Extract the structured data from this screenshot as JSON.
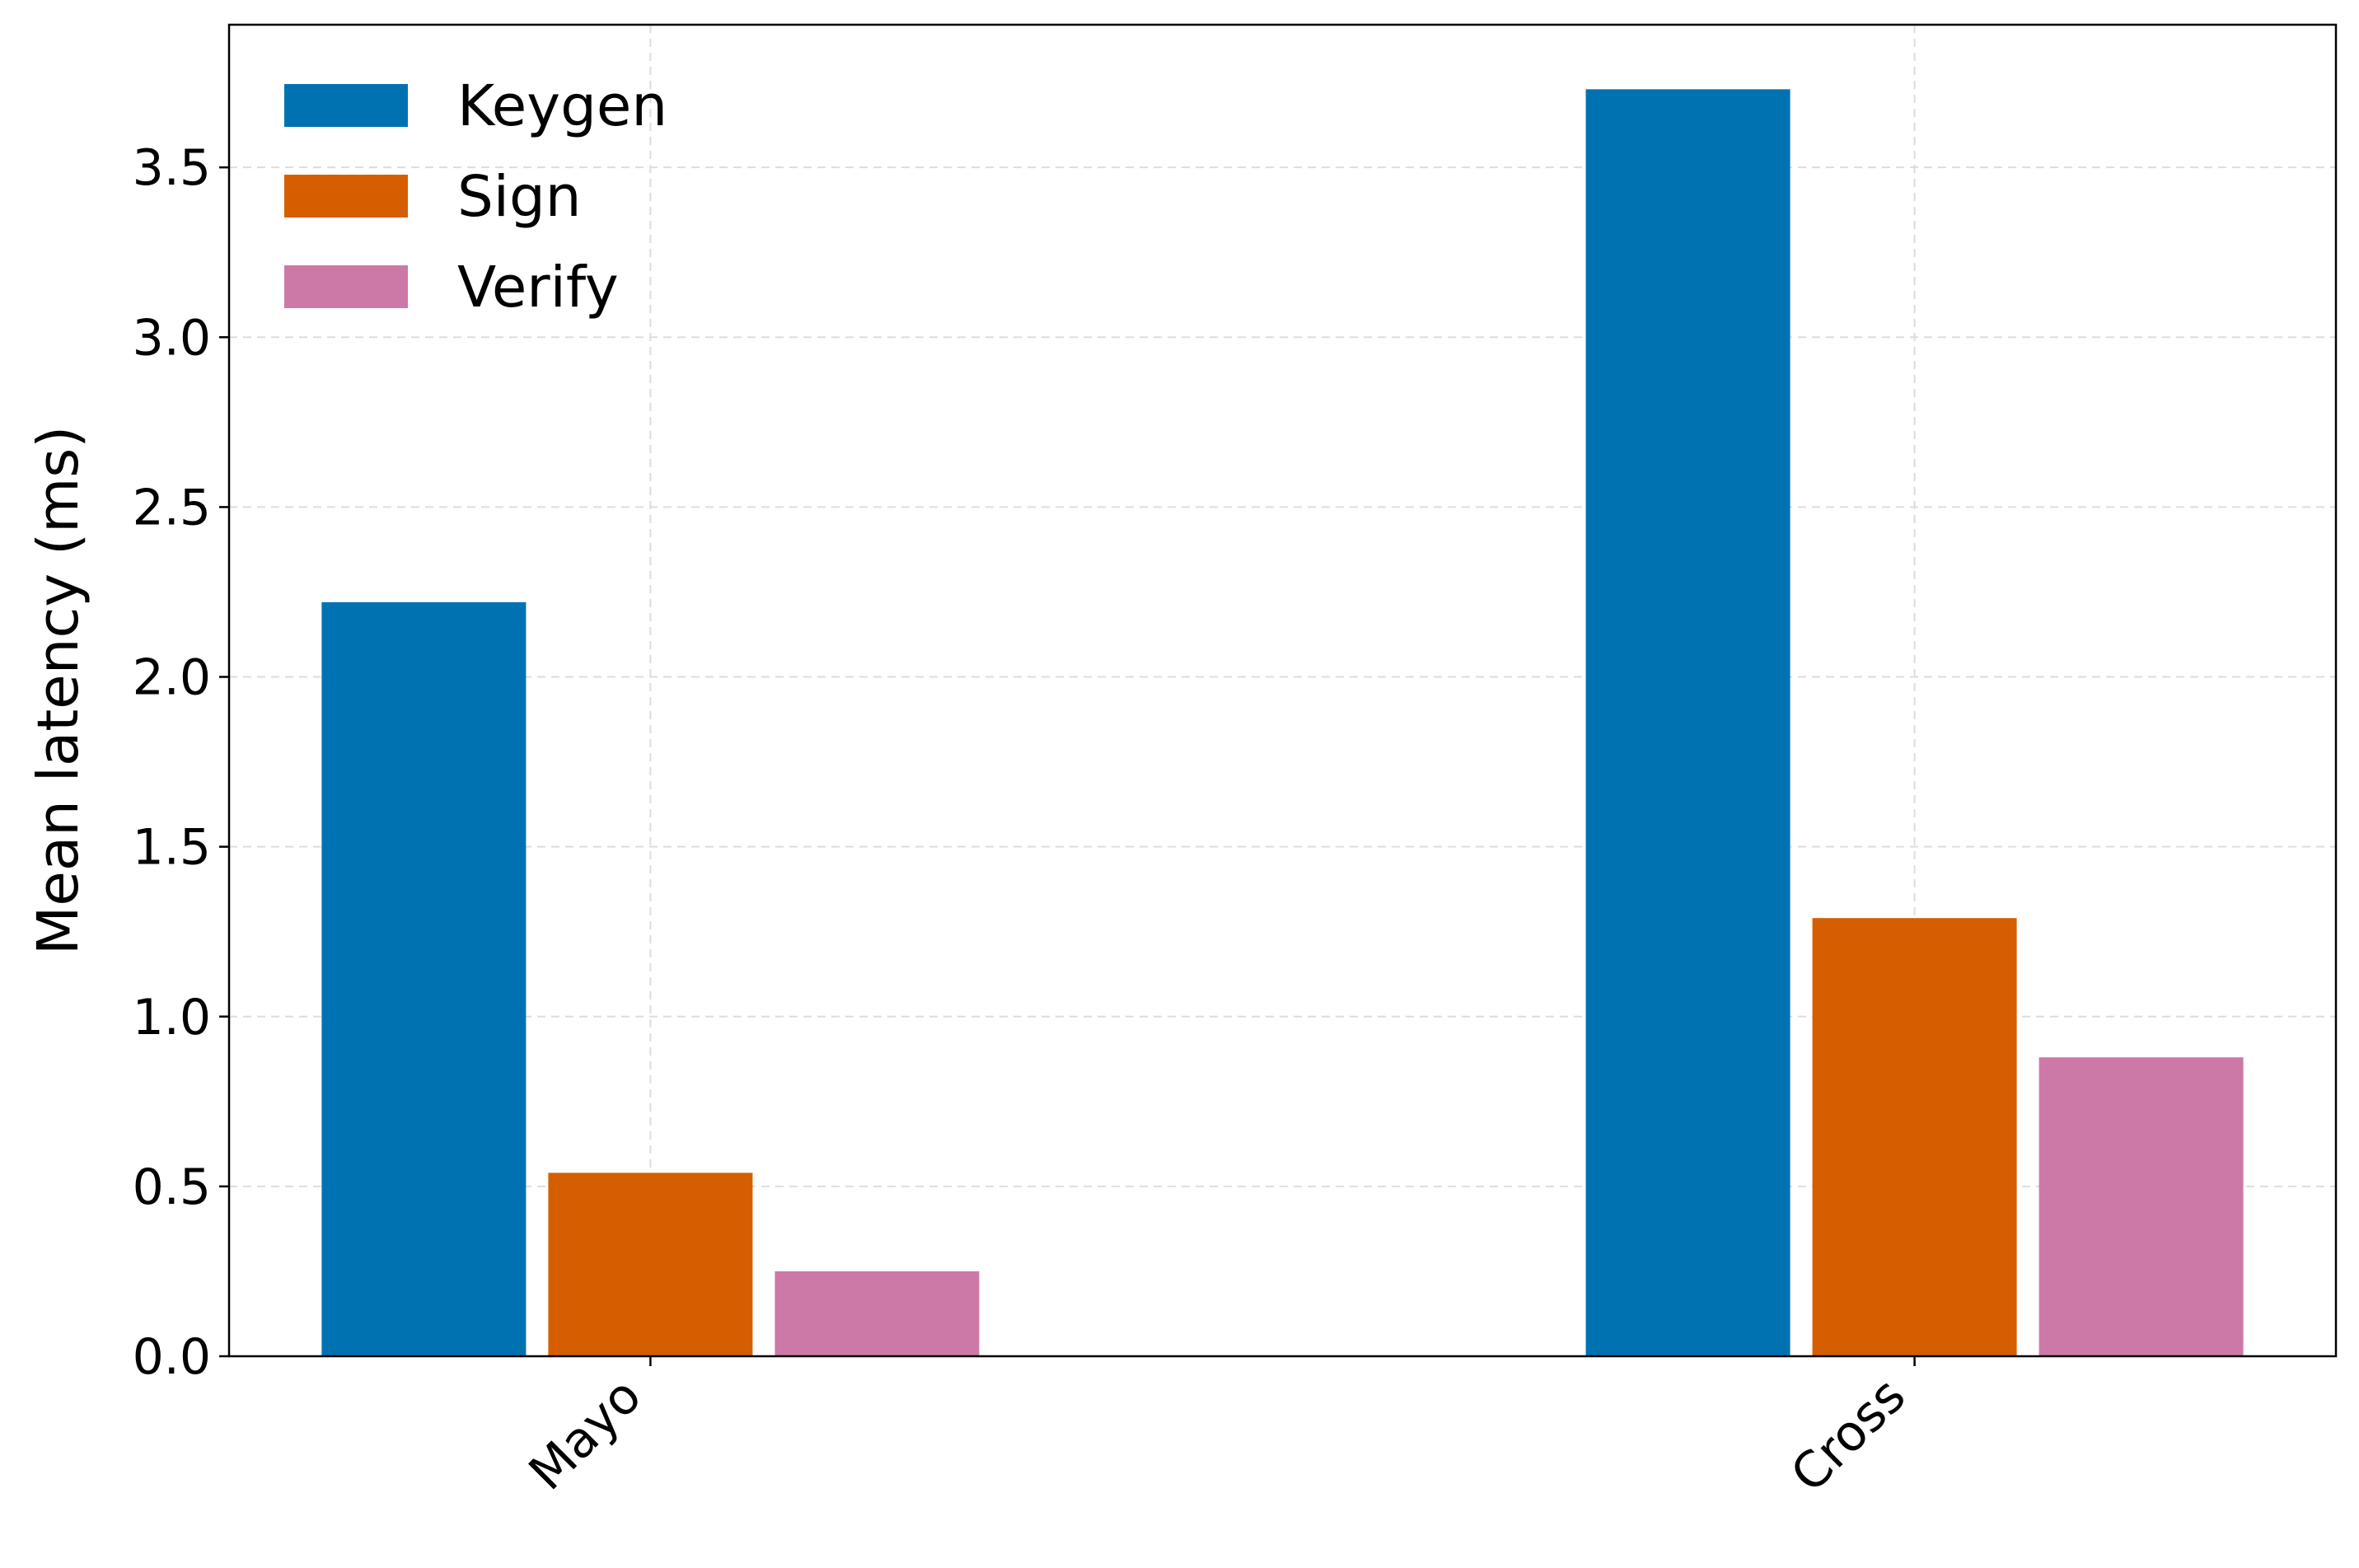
{
  "chart_data": {
    "type": "bar",
    "title": "",
    "xlabel": "",
    "ylabel": "Mean latency (ms)",
    "categories": [
      "Mayo",
      "Cross"
    ],
    "series": [
      {
        "name": "Keygen",
        "color": "#0072B2",
        "values": [
          2.22,
          3.73
        ]
      },
      {
        "name": "Sign",
        "color": "#D55E00",
        "values": [
          0.54,
          1.29
        ]
      },
      {
        "name": "Verify",
        "color": "#CC79A7",
        "values": [
          0.25,
          0.88
        ]
      }
    ],
    "ylim": [
      0,
      3.92
    ],
    "yticks": [
      0.0,
      0.5,
      1.0,
      1.5,
      2.0,
      2.5,
      3.0,
      3.5
    ],
    "ytick_labels": [
      "0.0",
      "0.5",
      "1.0",
      "1.5",
      "2.0",
      "2.5",
      "3.0",
      "3.5"
    ],
    "grid": true,
    "legend_position": "top-left"
  }
}
